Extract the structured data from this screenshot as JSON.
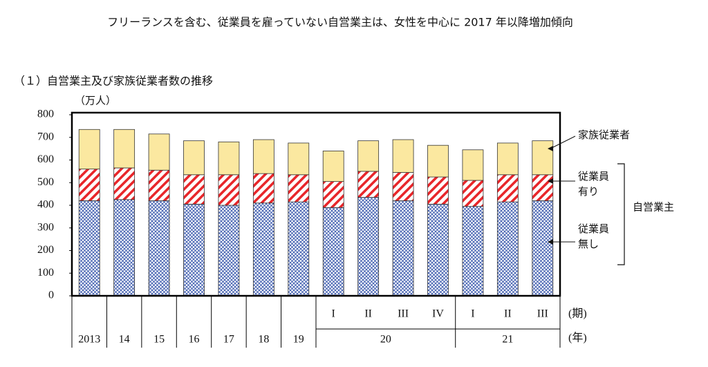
{
  "title": "フリーランスを含む、従業員を雇っていない自営業主は、女性を中心に 2017 年以降増加傾向",
  "chart_data": {
    "type": "stacked_bar",
    "subtitle": "（１）自営業主及び家族従業者数の推移",
    "y_unit": "（万人）",
    "x_label_period": "(期)",
    "x_label_year": "(年)",
    "categories": [
      null,
      null,
      null,
      null,
      null,
      null,
      null,
      "I",
      "II",
      "III",
      "IV",
      "I",
      "II",
      "III"
    ],
    "year_groups": [
      {
        "label": "2013",
        "count": 1
      },
      {
        "label": "14",
        "count": 1
      },
      {
        "label": "15",
        "count": 1
      },
      {
        "label": "16",
        "count": 1
      },
      {
        "label": "17",
        "count": 1
      },
      {
        "label": "18",
        "count": 1
      },
      {
        "label": "19",
        "count": 1
      },
      {
        "label": "20",
        "count": 4
      },
      {
        "label": "21",
        "count": 3
      }
    ],
    "series": [
      {
        "name": "従業員無し",
        "color": "#2f4fa8",
        "hatch": "cross",
        "values": [
          420,
          425,
          420,
          405,
          400,
          410,
          415,
          390,
          435,
          420,
          405,
          395,
          415,
          420
        ]
      },
      {
        "name": "従業員有り",
        "color": "#e8262a",
        "hatch": "diagonal",
        "values": [
          140,
          140,
          135,
          130,
          135,
          130,
          120,
          115,
          115,
          125,
          120,
          115,
          120,
          115
        ]
      },
      {
        "name": "家族従業者",
        "color": "#fbe8a0",
        "hatch": null,
        "values": [
          175,
          170,
          160,
          150,
          145,
          150,
          140,
          135,
          135,
          145,
          140,
          135,
          140,
          150
        ]
      }
    ],
    "bracket_label": "自営業主",
    "ylim": [
      0,
      800
    ],
    "yticks": [
      0,
      100,
      200,
      300,
      400,
      500,
      600,
      700,
      800
    ]
  }
}
